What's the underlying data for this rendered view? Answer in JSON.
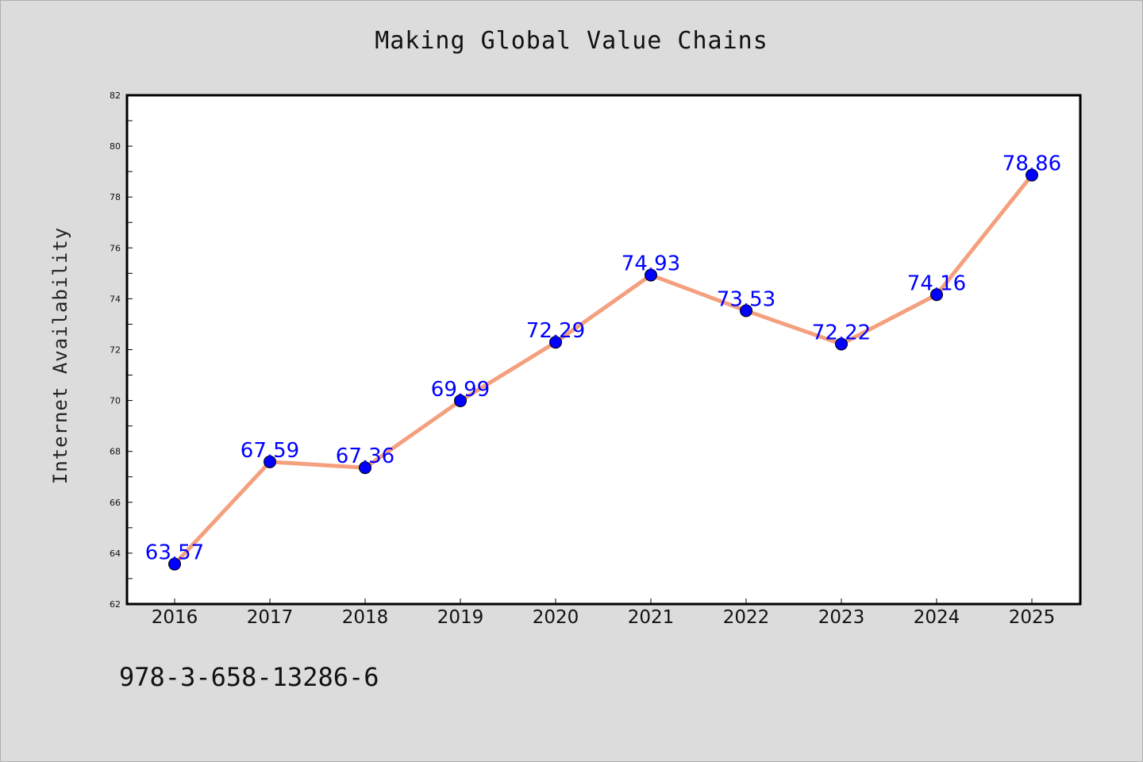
{
  "page": {
    "isbn": "978-3-658-13286-6"
  },
  "colors": {
    "background": "#dcdcdc",
    "plot_background": "#ffffff",
    "line": "#f4a07e",
    "marker": "#0000ff",
    "data_label": "#0000ff"
  },
  "chart_data": {
    "type": "line",
    "title": "Making Global Value Chains",
    "xlabel": "",
    "ylabel": "Internet Availability",
    "x": [
      "2016",
      "2017",
      "2018",
      "2019",
      "2020",
      "2021",
      "2022",
      "2023",
      "2024",
      "2025"
    ],
    "series": [
      {
        "values": [
          63.57,
          67.59,
          67.36,
          69.99,
          72.29,
          74.93,
          73.53,
          72.22,
          74.16,
          78.86
        ],
        "labels": [
          "63.57",
          "67.59",
          "67.36",
          "69.99",
          "72.29",
          "74.93",
          "73.53",
          "72.22",
          "74.16",
          "78.86"
        ]
      }
    ],
    "ylim": [
      62,
      82
    ],
    "yticks": [
      "62",
      "64",
      "66",
      "68",
      "70",
      "72",
      "74",
      "76",
      "78",
      "80",
      "82"
    ],
    "grid": false,
    "legend": false
  }
}
